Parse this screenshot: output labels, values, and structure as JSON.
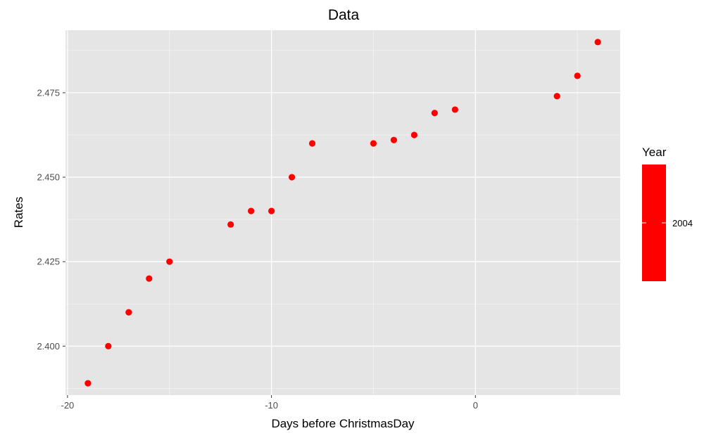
{
  "chart_data": {
    "type": "scatter",
    "title": "Data",
    "xlabel": "Days before ChristmasDay",
    "ylabel": "Rates",
    "xlim": [
      -20.1,
      7.1
    ],
    "ylim": [
      2.3855,
      2.4935
    ],
    "x_ticks": [
      -20,
      -10,
      0
    ],
    "x_tick_labels": [
      "-20",
      "-10",
      "0"
    ],
    "x_minor_ticks": [
      -15,
      -5,
      5
    ],
    "y_ticks": [
      2.4,
      2.425,
      2.45,
      2.475
    ],
    "y_tick_labels": [
      "2.400",
      "2.425",
      "2.450",
      "2.475"
    ],
    "y_minor_ticks": [
      2.3875,
      2.4125,
      2.4375,
      2.4625,
      2.4875
    ],
    "grid": true,
    "panel_background": "#e5e5e5",
    "grid_color": "#ffffff",
    "point_color": "#ff0000",
    "legend": {
      "title": "Year",
      "placement": "right",
      "labels": [
        "2004"
      ],
      "color": "#ff0000"
    },
    "series": [
      {
        "x": [
          -19,
          -18,
          -17,
          -16,
          -15,
          -12,
          -11,
          -10,
          -9,
          -8,
          -5,
          -4,
          -3,
          -2,
          -1,
          4,
          5,
          6
        ],
        "y": [
          2.389,
          2.4,
          2.41,
          2.42,
          2.425,
          2.436,
          2.44,
          2.44,
          2.45,
          2.46,
          2.46,
          2.461,
          2.4625,
          2.469,
          2.47,
          2.474,
          2.48,
          2.49
        ]
      }
    ]
  }
}
